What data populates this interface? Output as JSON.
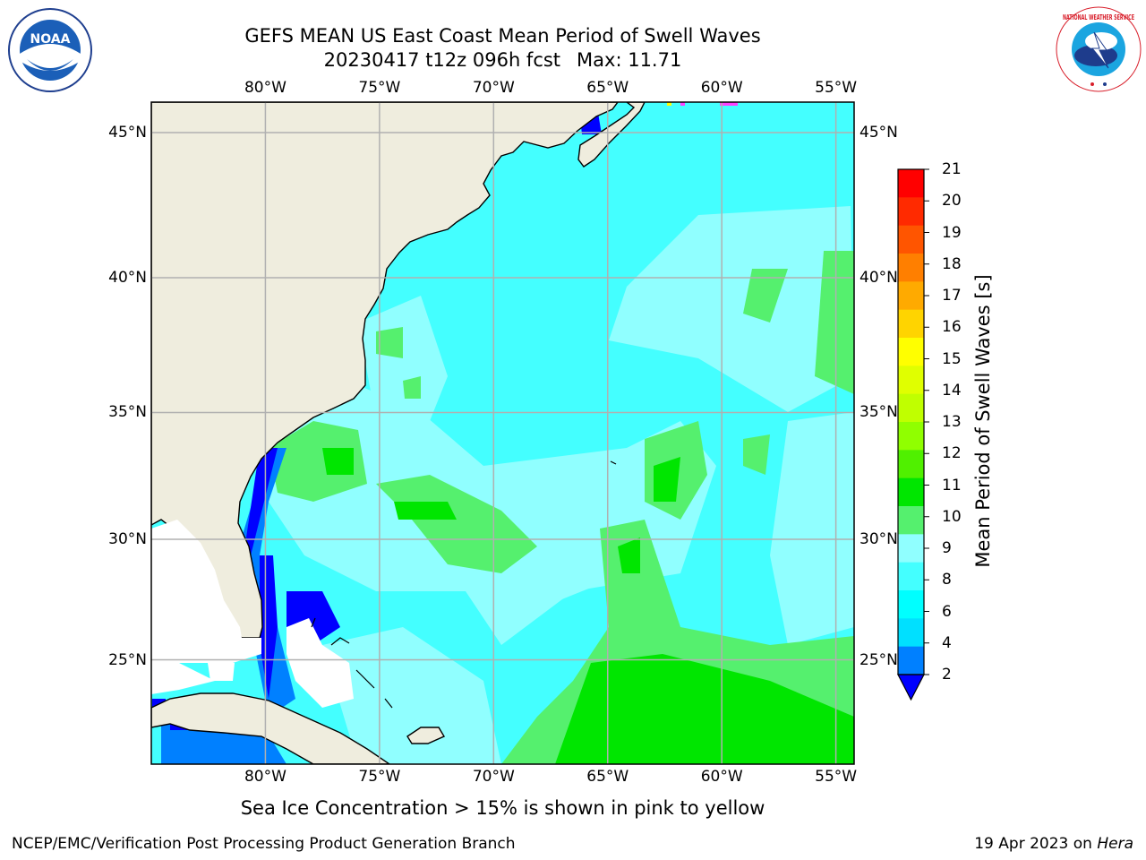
{
  "title": {
    "line1": "GEFS MEAN US East Coast Mean Period of Swell Waves",
    "line2": "20230417 t12z 096h fcst",
    "max_label": "Max: 11.71"
  },
  "map": {
    "lon_labels": [
      "80°W",
      "75°W",
      "70°W",
      "65°W",
      "60°W",
      "55°W"
    ],
    "lat_labels": [
      "45°N",
      "40°N",
      "35°N",
      "30°N",
      "25°N"
    ],
    "lon_values": [
      -80,
      -75,
      -70,
      -65,
      -60,
      -55
    ],
    "lat_values": [
      45,
      40,
      35,
      30,
      25
    ],
    "extent": {
      "lon_min": -85,
      "lon_max": -54.2,
      "lat_min": 20.5,
      "lat_max": 46
    },
    "colors": {
      "land": "#efedde",
      "grid": "#b0b0b0",
      "coast": "#000000",
      "no_data": "#ffffff"
    }
  },
  "colorbar": {
    "label": "Mean Period of Swell Waves [s]",
    "ticks": [
      "21",
      "20",
      "19",
      "18",
      "17",
      "16",
      "15",
      "14",
      "13",
      "12",
      "11",
      "10",
      "9",
      "8",
      "6",
      "4",
      "2"
    ],
    "colors": [
      "#ff0000",
      "#ff2a00",
      "#ff5500",
      "#ff7f00",
      "#ffaa00",
      "#ffd400",
      "#ffff00",
      "#e0ff00",
      "#c0ff00",
      "#90ff00",
      "#50f000",
      "#00e600",
      "#55f06e",
      "#90ffff",
      "#44ffff",
      "#00ffff",
      "#00e0ff",
      "#0080ff"
    ],
    "extend_color": "#0000ff"
  },
  "footer": {
    "note": "Sea Ice Concentration > 15% is shown in pink to yellow",
    "credit": "NCEP/EMC/Verification Post Processing Product Generation Branch",
    "date": "19 Apr 2023 on ",
    "machine": "Hera"
  },
  "logos": {
    "noaa_text": "NOAA",
    "nws_text": "NATIONAL WEATHER SERVICE"
  }
}
